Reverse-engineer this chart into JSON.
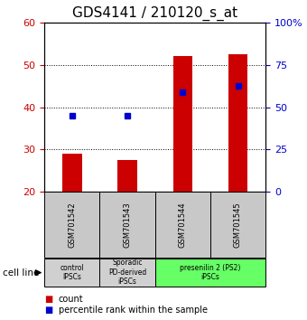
{
  "title": "GDS4141 / 210120_s_at",
  "samples": [
    "GSM701542",
    "GSM701543",
    "GSM701544",
    "GSM701545"
  ],
  "bar_values": [
    29,
    27.5,
    52,
    52.5
  ],
  "bar_bottom": 20,
  "percentile_values": [
    38,
    38,
    43.5,
    45
  ],
  "ylim_left": [
    20,
    60
  ],
  "ylim_right": [
    0,
    100
  ],
  "yticks_left": [
    20,
    30,
    40,
    50,
    60
  ],
  "yticks_right": [
    0,
    25,
    50,
    75,
    100
  ],
  "yticklabels_right": [
    "0",
    "25",
    "50",
    "75",
    "100%"
  ],
  "bar_color": "#cc0000",
  "percentile_color": "#0000cc",
  "grid_yticks": [
    30,
    40,
    50
  ],
  "groups": [
    {
      "label": "control\nIPSCs",
      "start": 0,
      "end": 1,
      "color": "#d0d0d0"
    },
    {
      "label": "Sporadic\nPD-derived\niPSCs",
      "start": 1,
      "end": 2,
      "color": "#d0d0d0"
    },
    {
      "label": "presenilin 2 (PS2)\niPSCs",
      "start": 2,
      "end": 4,
      "color": "#66ff66"
    }
  ],
  "cell_line_label": "cell line",
  "legend_count_label": "count",
  "legend_percentile_label": "percentile rank within the sample",
  "left_tick_color": "#cc0000",
  "right_tick_color": "#0000cc",
  "title_fontsize": 11,
  "tick_fontsize": 8,
  "box_gray_color": "#c8c8c8",
  "box_green_color": "#66ff66",
  "bar_width": 0.35
}
